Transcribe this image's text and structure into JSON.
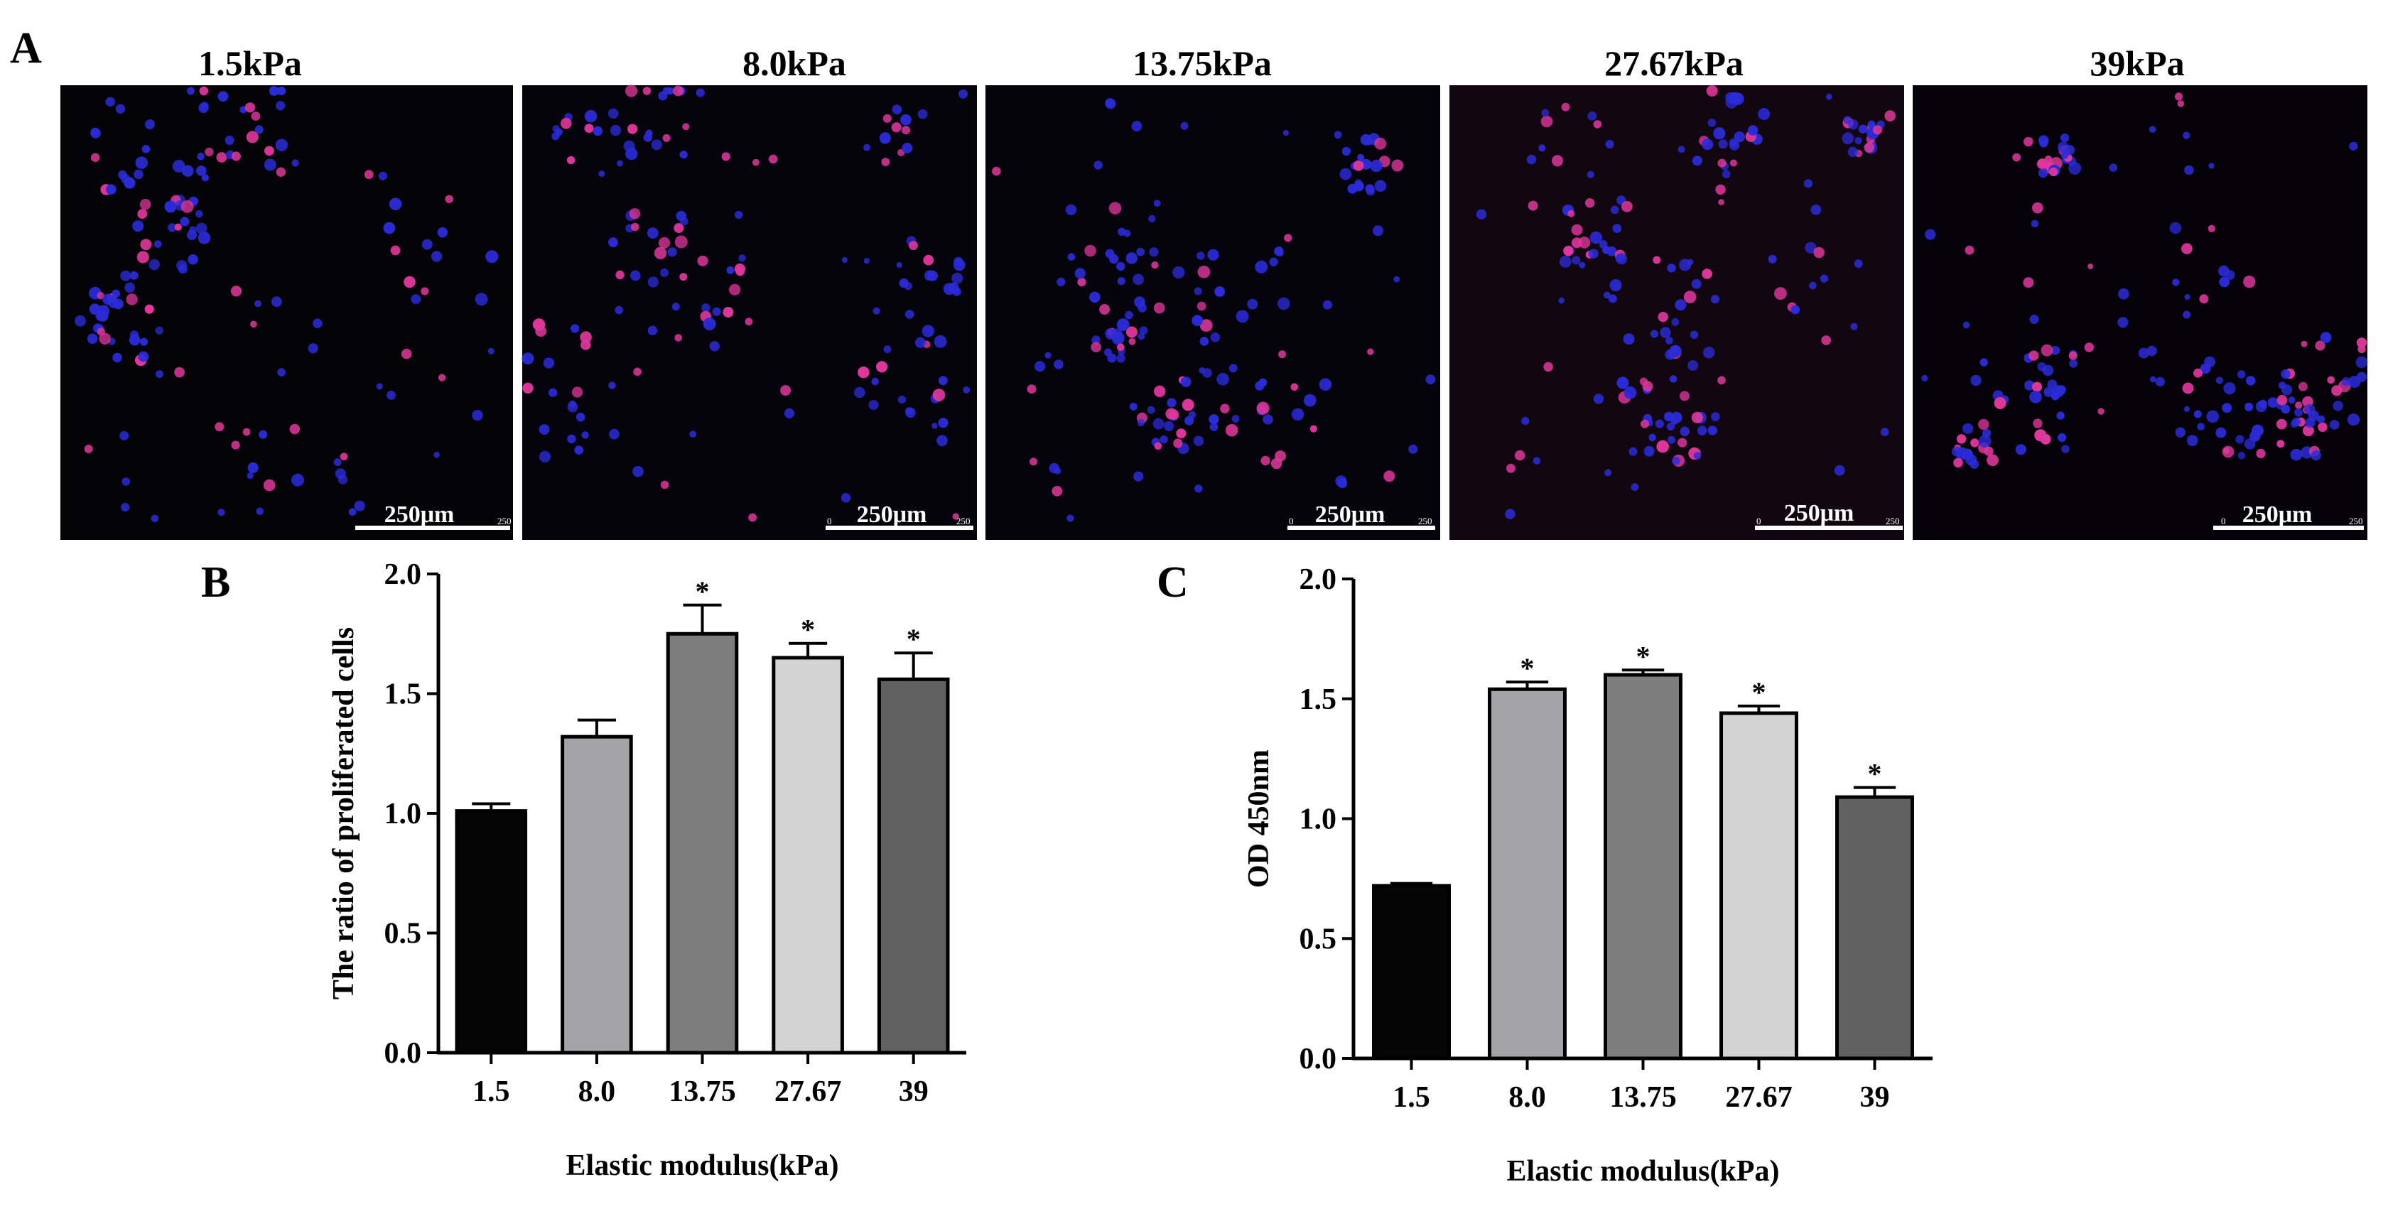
{
  "panel_a": {
    "letter": "A",
    "images": [
      {
        "title": "1.5kPa",
        "scale_bar": "250μm",
        "scale_ticks": [
          "250"
        ],
        "background": "#040306"
      },
      {
        "title": "8.0kPa",
        "scale_bar": "250μm",
        "scale_ticks": [
          "0",
          "250"
        ],
        "background": "#05030c"
      },
      {
        "title": "13.75kPa",
        "scale_bar": "250μm",
        "scale_ticks": [
          "0",
          "250"
        ],
        "background": "#05030b"
      },
      {
        "title": "27.67kPa",
        "scale_bar": "250μm",
        "scale_ticks": [
          "0",
          "250"
        ],
        "background": "#120710"
      },
      {
        "title": "39kPa",
        "scale_bar": "250μm",
        "scale_ticks": [
          "0",
          "250"
        ],
        "background": "#040208"
      }
    ],
    "colors": {
      "nuclei_blue": "#2b2bd9",
      "edu_magenta": "#e0379c"
    }
  },
  "chart_data": [
    {
      "panel": "B",
      "type": "bar",
      "categories": [
        "1.5",
        "8.0",
        "13.75",
        "27.67",
        "39"
      ],
      "values": [
        1.01,
        1.32,
        1.75,
        1.65,
        1.56
      ],
      "errors": [
        0.03,
        0.07,
        0.12,
        0.06,
        0.11
      ],
      "significance": [
        "",
        "",
        "*",
        "*",
        "*"
      ],
      "colors": [
        "#050505",
        "#a3a3a8",
        "#7d7d7d",
        "#d3d3d3",
        "#616161"
      ],
      "xlabel": "Elastic modulus(kPa)",
      "ylabel": "The ratio of proliferated cells",
      "ylim": [
        0,
        2.0
      ],
      "yticks": [
        "0.0",
        "0.5",
        "1.0",
        "1.5",
        "2.0"
      ],
      "grid": false
    },
    {
      "panel": "C",
      "type": "bar",
      "categories": [
        "1.5",
        "8.0",
        "13.75",
        "27.67",
        "39"
      ],
      "values": [
        0.72,
        1.54,
        1.6,
        1.44,
        1.09
      ],
      "errors": [
        0.01,
        0.03,
        0.02,
        0.03,
        0.04
      ],
      "significance": [
        "",
        "*",
        "*",
        "*",
        "*"
      ],
      "colors": [
        "#050505",
        "#a3a3a8",
        "#7d7d7d",
        "#d3d3d3",
        "#616161"
      ],
      "xlabel": "Elastic modulus(kPa)",
      "ylabel": "OD 450nm",
      "ylim": [
        0,
        2.0
      ],
      "yticks": [
        "0.0",
        "0.5",
        "1.0",
        "1.5",
        "2.0"
      ],
      "grid": false
    }
  ]
}
